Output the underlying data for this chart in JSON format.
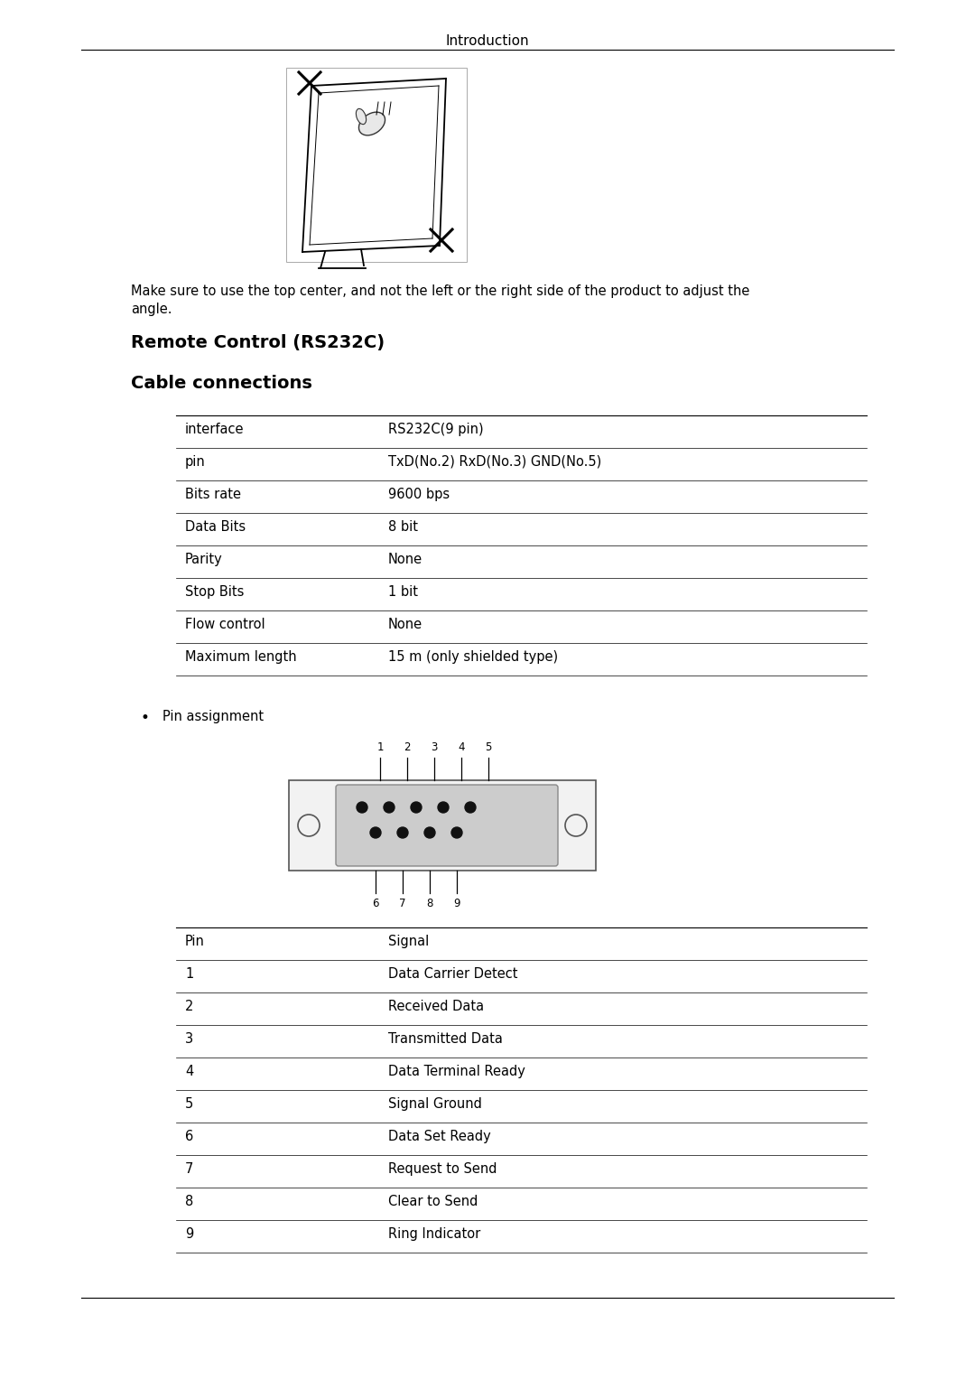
{
  "page_title": "Introduction",
  "bg_color": "#ffffff",
  "text_color": "#000000",
  "caption_line1": "Make sure to use the top center, and not the left or the right side of the product to adjust the",
  "caption_line2": "angle.",
  "section1_title": "Remote Control (RS232C)",
  "section2_title": "Cable connections",
  "table1_data": [
    [
      "interface",
      "RS232C(9 pin)"
    ],
    [
      "pin",
      "TxD(No.2) RxD(No.3) GND(No.5)"
    ],
    [
      "Bits rate",
      "9600 bps"
    ],
    [
      "Data Bits",
      "8 bit"
    ],
    [
      "Parity",
      "None"
    ],
    [
      "Stop Bits",
      "1 bit"
    ],
    [
      "Flow control",
      "None"
    ],
    [
      "Maximum length",
      "15 m (only shielded type)"
    ]
  ],
  "bullet_text": "Pin assignment",
  "table2_data": [
    [
      "Pin",
      "Signal"
    ],
    [
      "1",
      "Data Carrier Detect"
    ],
    [
      "2",
      "Received Data"
    ],
    [
      "3",
      "Transmitted Data"
    ],
    [
      "4",
      "Data Terminal Ready"
    ],
    [
      "5",
      "Signal Ground"
    ],
    [
      "6",
      "Data Set Ready"
    ],
    [
      "7",
      "Request to Send"
    ],
    [
      "8",
      "Clear to Send"
    ],
    [
      "9",
      "Ring Indicator"
    ]
  ],
  "font_size_header": 10,
  "font_size_section": 12,
  "font_size_body": 9.5,
  "font_size_table": 9.5,
  "font_size_small": 8
}
